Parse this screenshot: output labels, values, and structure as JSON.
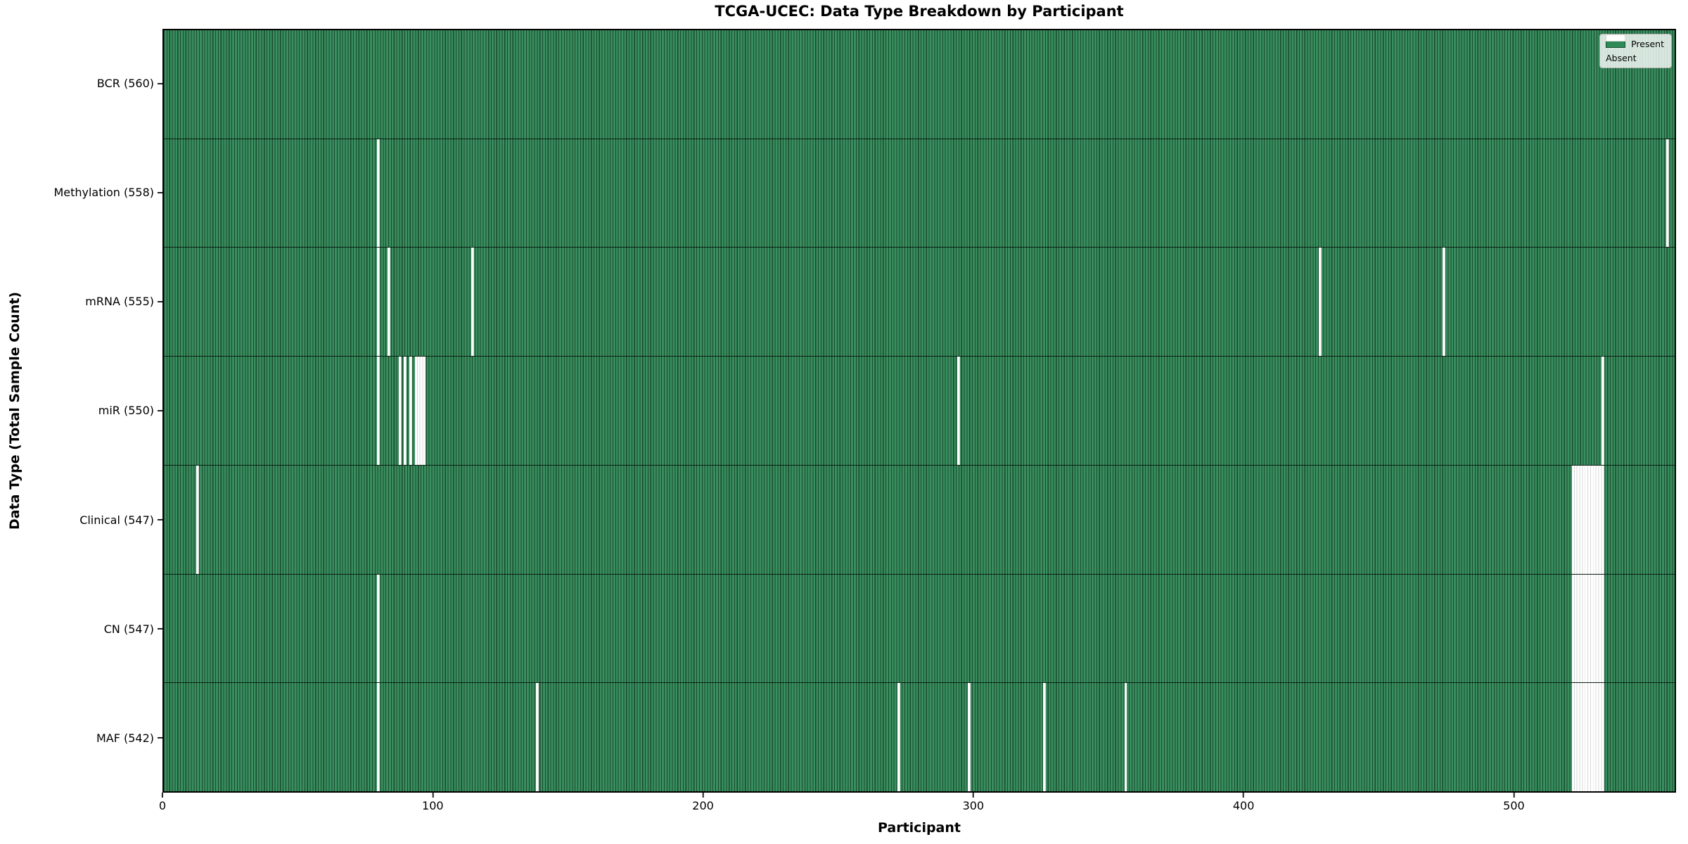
{
  "title": "TCGA-UCEC: Data Type Breakdown by Participant",
  "xlabel": "Participant",
  "ylabel": "Data Type (Total Sample Count)",
  "legend": {
    "present_label": "Present",
    "absent_label": "Absent"
  },
  "colors": {
    "present_fill": "#2e8b57",
    "present_edge": "#174a2c",
    "absent_fill": "#ffffff",
    "background": "#ffffff",
    "axis": "#000000"
  },
  "chart_data": {
    "type": "heatmap",
    "title": "TCGA-UCEC: Data Type Breakdown by Participant",
    "xlabel": "Participant",
    "ylabel": "Data Type (Total Sample Count)",
    "x_range": [
      0,
      560
    ],
    "x_ticks": [
      0,
      100,
      200,
      300,
      400,
      500
    ],
    "legend_entries": [
      "Present",
      "Absent"
    ],
    "legend_position": "upper right",
    "grid": false,
    "total_participants": 560,
    "rows": [
      {
        "data_type": "BCR",
        "label": "BCR (560)",
        "present_count": 560,
        "absent_participants": []
      },
      {
        "data_type": "Methylation",
        "label": "Methylation (558)",
        "present_count": 558,
        "absent_participants": [
          79,
          557
        ]
      },
      {
        "data_type": "mRNA",
        "label": "mRNA (555)",
        "present_count": 555,
        "absent_participants": [
          79,
          83,
          114,
          428,
          474
        ]
      },
      {
        "data_type": "miR",
        "label": "miR (550)",
        "present_count": 550,
        "absent_participants": [
          79,
          87,
          89,
          91,
          93,
          94,
          95,
          96,
          294,
          533
        ]
      },
      {
        "data_type": "Clinical",
        "label": "Clinical (547)",
        "present_count": 547,
        "absent_participants": [
          12,
          522,
          523,
          524,
          525,
          526,
          527,
          528,
          529,
          530,
          531,
          532,
          533
        ]
      },
      {
        "data_type": "CN",
        "label": "CN (547)",
        "present_count": 547,
        "absent_participants": [
          79,
          522,
          523,
          524,
          525,
          526,
          527,
          528,
          529,
          530,
          531,
          532,
          533
        ]
      },
      {
        "data_type": "MAF",
        "label": "MAF (542)",
        "present_count": 542,
        "absent_participants": [
          79,
          138,
          272,
          298,
          326,
          356,
          522,
          523,
          524,
          525,
          526,
          527,
          528,
          529,
          530,
          531,
          532,
          533
        ]
      }
    ]
  }
}
